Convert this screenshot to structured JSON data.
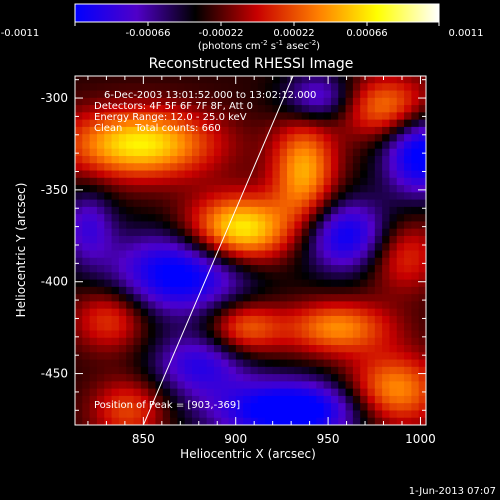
{
  "colorbar": {
    "ticks": [
      "-0.0011",
      "-0.00066",
      "-0.00022",
      "0.00022",
      "0.00066",
      "0.0011"
    ],
    "units_main": "(photons cm",
    "units_exp1": "-2",
    "units_mid": " s",
    "units_exp2": "-1",
    "units_end": " asec",
    "units_exp3": "-2",
    "units_close": ")"
  },
  "title": "Reconstructed RHESSI Image",
  "annotations": {
    "time": "6-Dec-2003 13:01:52.000 to 13:02:12.000",
    "detectors": "Detectors: 4F 5F 6F 7F 8F, Att 0",
    "energy": "Energy Range: 12.0 - 25.0 keV",
    "clean": "Clean    Total counts: 660",
    "peak": "Position of Peak = [903,-369]"
  },
  "footer_date": "1-Jun-2013 07:07",
  "colors": {
    "background": "#000000",
    "axes": "#ffffff",
    "limb_line": "#ffffff"
  },
  "chart_data": {
    "type": "heatmap",
    "title": "Reconstructed RHESSI Image",
    "xlabel": "Heliocentric X (arcsec)",
    "ylabel": "Heliocentric Y (arcsec)",
    "xlim": [
      813,
      1003
    ],
    "ylim": [
      -478,
      -288
    ],
    "xticks": [
      850,
      900,
      950,
      1000
    ],
    "yticks": [
      -300,
      -350,
      -400,
      -450
    ],
    "color_range": [
      -0.0011,
      0.0011
    ],
    "colormap": [
      "#0000ff",
      "#5000c8",
      "#000000",
      "#c80000",
      "#ff8000",
      "#ffff00",
      "#ffffff"
    ],
    "peak_position": [
      903,
      -369
    ],
    "limb_line": [
      [
        850,
        -478
      ],
      [
        931,
        -288
      ]
    ],
    "sources": [
      {
        "x": 848,
        "y": -325,
        "sx": 28,
        "sy": 13,
        "a": 0.001
      },
      {
        "x": 902,
        "y": -372,
        "sx": 20,
        "sy": 13,
        "a": 0.0011
      },
      {
        "x": 937,
        "y": -340,
        "sx": 12,
        "sy": 20,
        "a": 0.0008
      },
      {
        "x": 982,
        "y": -305,
        "sx": 18,
        "sy": 12,
        "a": 0.0007
      },
      {
        "x": 990,
        "y": -385,
        "sx": 14,
        "sy": 14,
        "a": 0.0005
      },
      {
        "x": 905,
        "y": -425,
        "sx": 14,
        "sy": 10,
        "a": 0.0006
      },
      {
        "x": 955,
        "y": -425,
        "sx": 20,
        "sy": 10,
        "a": 0.0007
      },
      {
        "x": 985,
        "y": -460,
        "sx": 18,
        "sy": 14,
        "a": 0.0008
      },
      {
        "x": 832,
        "y": -420,
        "sx": 14,
        "sy": 12,
        "a": 0.0005
      },
      {
        "x": 842,
        "y": -470,
        "sx": 14,
        "sy": 12,
        "a": 0.0005
      },
      {
        "x": 870,
        "y": -395,
        "sx": 26,
        "sy": 16,
        "a": -0.0009
      },
      {
        "x": 930,
        "y": -470,
        "sx": 30,
        "sy": 12,
        "a": -0.001
      },
      {
        "x": 960,
        "y": -375,
        "sx": 18,
        "sy": 14,
        "a": -0.0008
      },
      {
        "x": 1000,
        "y": -330,
        "sx": 14,
        "sy": 16,
        "a": -0.0009
      },
      {
        "x": 880,
        "y": -445,
        "sx": 18,
        "sy": 12,
        "a": -0.0006
      },
      {
        "x": 945,
        "y": -300,
        "sx": 14,
        "sy": 10,
        "a": -0.0006
      },
      {
        "x": 820,
        "y": -370,
        "sx": 10,
        "sy": 14,
        "a": -0.0005
      }
    ]
  }
}
